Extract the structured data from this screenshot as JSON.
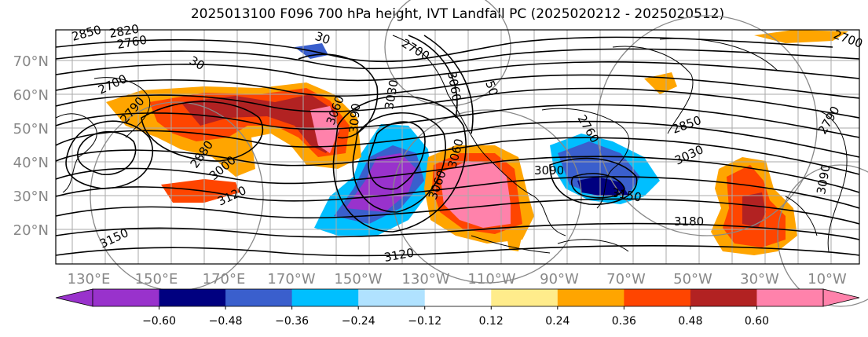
{
  "title": "2025013100 F096 700 hPa height, IVT Landfall PC (2025020212 - 2025020512)",
  "lat_labels": [
    "70°N",
    "60°N",
    "50°N",
    "40°N",
    "30°N",
    "20°N"
  ],
  "lon_labels": [
    "130°E",
    "150°E",
    "170°E",
    "170°W",
    "150°W",
    "130°W",
    "110°W",
    "90°W",
    "70°W",
    "50°W",
    "30°W",
    "10°W"
  ],
  "colorbar": {
    "colors": [
      "#9932CC",
      "#000080",
      "#3A5FCD",
      "#00BFFF",
      "#B0E2FF",
      "#FFFFFF",
      "#FFEC8B",
      "#FFA500",
      "#FF4500",
      "#B22222",
      "#FF82AB"
    ],
    "ticks": [
      "−0.60",
      "−0.48",
      "−0.36",
      "−0.24",
      "−0.12",
      "0.12",
      "0.24",
      "0.36",
      "0.48",
      "0.60"
    ]
  },
  "contour_labels": [
    "2850",
    "2820",
    "2760",
    "30",
    "2700",
    "2790",
    "2700",
    "30",
    "2880",
    "3000",
    "3120",
    "3150",
    "3090",
    "3060",
    "3030",
    "3090",
    "3150",
    "3180",
    "3120",
    "3030",
    "2760",
    "3060",
    "50",
    "2850",
    "3090",
    "2790",
    "2700",
    "3060",
    "3060"
  ],
  "colors": {
    "land_outline": "#000000",
    "grid": "#aaaaaa",
    "axis_label": "#888888"
  }
}
